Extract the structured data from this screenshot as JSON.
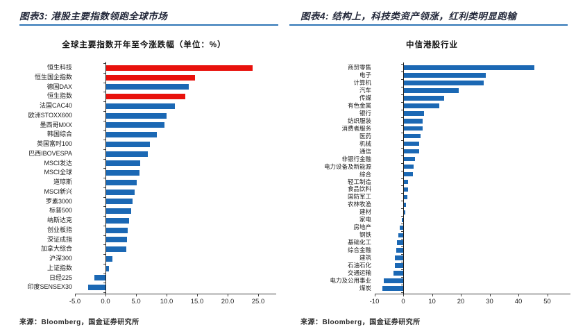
{
  "colors": {
    "bar_blue": "#1b68b4",
    "bar_red": "#e8110c",
    "rule_blue": "#2e75b6",
    "heading_text": "#23283a"
  },
  "figures": [
    {
      "heading": "图表3: 港股主要指数领跑全球市场",
      "source": "来源：Bloomberg，国金证券研究所"
    },
    {
      "heading": "图表4: 结构上，科技类资产领涨，红利类明显跑输",
      "source": "来源：Bloomberg，国金证券研究所"
    }
  ],
  "chart_data": [
    {
      "type": "bar",
      "orientation": "horizontal",
      "title": "全球主要指数开年至今涨跌幅（单位：%）",
      "categories": [
        "恒生科技",
        "恒生国企指数",
        "德国DAX",
        "恒生指数",
        "法国CAC40",
        "欧洲STOXX600",
        "墨西哥MXX",
        "韩国综合",
        "英国富时100",
        "巴西IBOVESPA",
        "MSCI发达",
        "MSCI全球",
        "道琼斯",
        "MSCI新兴",
        "罗素3000",
        "标普500",
        "纳斯达克",
        "创业板指",
        "深证成指",
        "加拿大综合",
        "沪深300",
        "上证指数",
        "日经225",
        "印度SENSEX30"
      ],
      "values": [
        24.0,
        14.6,
        13.5,
        13.0,
        11.2,
        9.9,
        9.5,
        8.3,
        7.2,
        6.8,
        5.6,
        5.5,
        5.0,
        4.7,
        4.3,
        4.1,
        3.7,
        3.5,
        3.4,
        3.3,
        1.0,
        0.4,
        -1.8,
        -2.8
      ],
      "highlight_indices": [
        0,
        1,
        3
      ],
      "xlim": [
        -5,
        28
      ],
      "xtick_labels": [
        "-5.0",
        "0.0",
        "5.0",
        "10.0",
        "15.0",
        "20.0",
        "25.0"
      ],
      "legend": "none",
      "grid": false
    },
    {
      "type": "bar",
      "orientation": "horizontal",
      "title": "中信港股行业",
      "categories": [
        "商贸零售",
        "电子",
        "计算机",
        "汽车",
        "传媒",
        "有色金属",
        "银行",
        "纺织服装",
        "消费者服务",
        "医药",
        "机械",
        "通信",
        "非银行金融",
        "电力设备及新能源",
        "综合",
        "轻工制造",
        "食品饮料",
        "国防军工",
        "农林牧渔",
        "建材",
        "家电",
        "房地产",
        "钢铁",
        "基础化工",
        "综合金融",
        "建筑",
        "石油石化",
        "交通运输",
        "电力及公用事业",
        "煤炭"
      ],
      "values": [
        45.2,
        28.4,
        27.6,
        19.0,
        14.0,
        12.3,
        7.0,
        6.5,
        6.4,
        5.7,
        5.4,
        5.3,
        3.9,
        3.4,
        3.1,
        1.5,
        1.4,
        1.2,
        0.8,
        0.6,
        -0.5,
        -1.3,
        -1.8,
        -2.2,
        -2.5,
        -2.9,
        -3.0,
        -3.3,
        -6.8,
        -7.2
      ],
      "highlight_indices": [],
      "xlim": [
        -10,
        58
      ],
      "xtick_labels": [
        "-10",
        "0",
        "10",
        "20",
        "30",
        "40",
        "50"
      ],
      "legend": "none",
      "grid": false
    }
  ]
}
